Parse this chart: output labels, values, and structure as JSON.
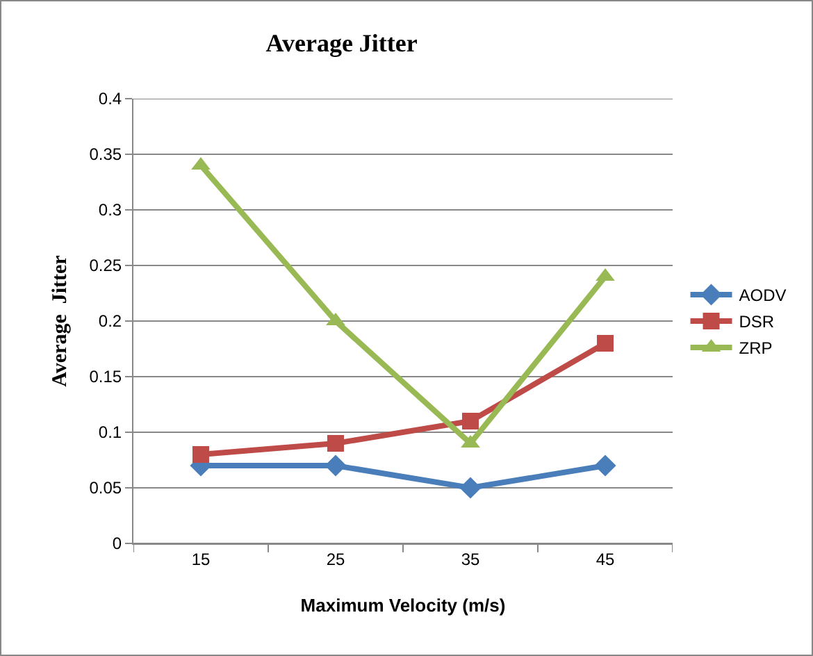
{
  "chart_data": {
    "type": "line",
    "title": "Average Jitter",
    "xlabel": "Maximum Velocity (m/s)",
    "ylabel": "Average  Jitter",
    "categories": [
      "15",
      "25",
      "35",
      "45"
    ],
    "series": [
      {
        "name": "AODV",
        "color": "#4a7ebb",
        "marker": "diamond",
        "values": [
          0.07,
          0.07,
          0.05,
          0.07
        ]
      },
      {
        "name": "DSR",
        "color": "#be4b48",
        "marker": "square",
        "values": [
          0.08,
          0.09,
          0.11,
          0.18
        ]
      },
      {
        "name": "ZRP",
        "color": "#98b954",
        "marker": "triangle",
        "values": [
          0.34,
          0.2,
          0.09,
          0.24
        ]
      }
    ],
    "ylim": [
      0,
      0.4
    ],
    "yticks": [
      0,
      0.05,
      0.1,
      0.15,
      0.2,
      0.25,
      0.3,
      0.35,
      0.4
    ],
    "grid": "y",
    "legend": "right",
    "line_style": "solid"
  }
}
